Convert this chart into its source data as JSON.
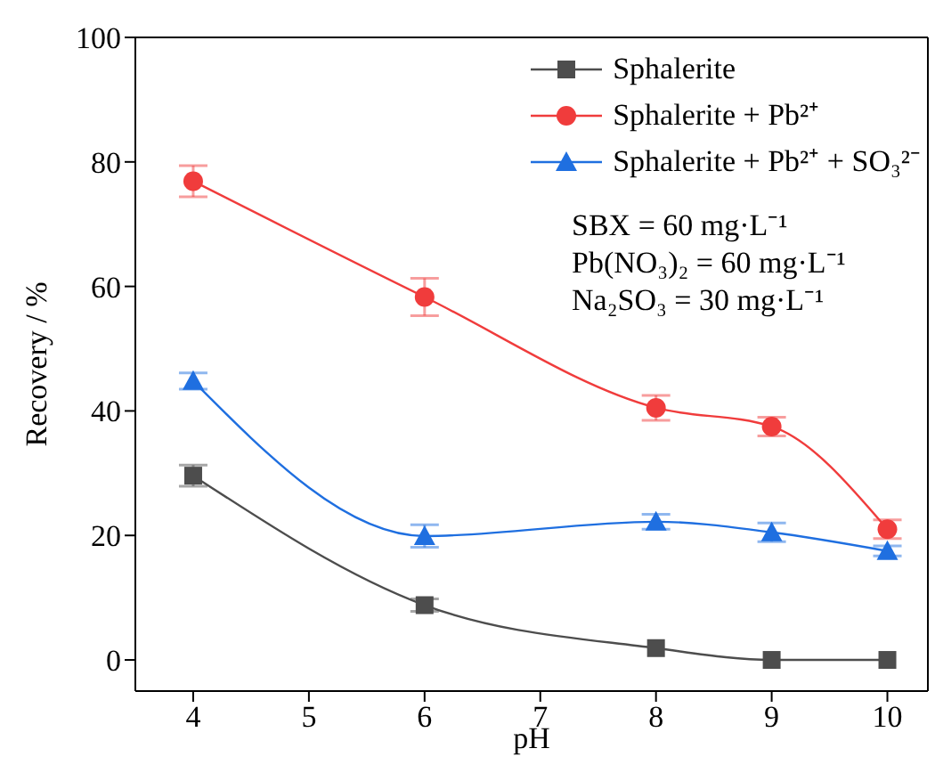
{
  "chart_data": {
    "type": "line",
    "xlabel": "pH",
    "ylabel": "Recovery / %",
    "x": [
      4,
      6,
      8,
      9,
      10
    ],
    "xlim": [
      3.5,
      10.35
    ],
    "xticks": [
      4,
      5,
      6,
      7,
      8,
      9,
      10
    ],
    "ylim": [
      -5,
      100
    ],
    "yticks": [
      0,
      20,
      40,
      60,
      80,
      100
    ],
    "grid": false,
    "legend": "top right",
    "series": [
      {
        "name": "Sphalerite",
        "color": "#4d4d4d",
        "marker": "square",
        "values": [
          29.6,
          8.8,
          1.9,
          0,
          0
        ],
        "errors": [
          1.7,
          1,
          null,
          null,
          null
        ]
      },
      {
        "name": "Sphalerite + Pb²⁺",
        "color": "#f03c3c",
        "marker": "circle",
        "values": [
          76.9,
          58.3,
          40.5,
          37.5,
          21
        ],
        "errors": [
          2.5,
          3,
          2,
          1.5,
          1.5
        ]
      },
      {
        "name": "Sphalerite + Pb²⁺ + SO₃²⁻",
        "color": "#1f6fe0",
        "marker": "triangle",
        "values": [
          44.8,
          19.9,
          22.2,
          20.5,
          17.5
        ],
        "errors": [
          1.3,
          1.8,
          1.2,
          1.5,
          0.8
        ]
      }
    ],
    "annotations": [
      "SBX = 60 mg·L⁻¹",
      "Pb(NO₃)₂ = 60 mg·L⁻¹",
      "Na₂SO₃ = 30 mg·L⁻¹"
    ]
  }
}
